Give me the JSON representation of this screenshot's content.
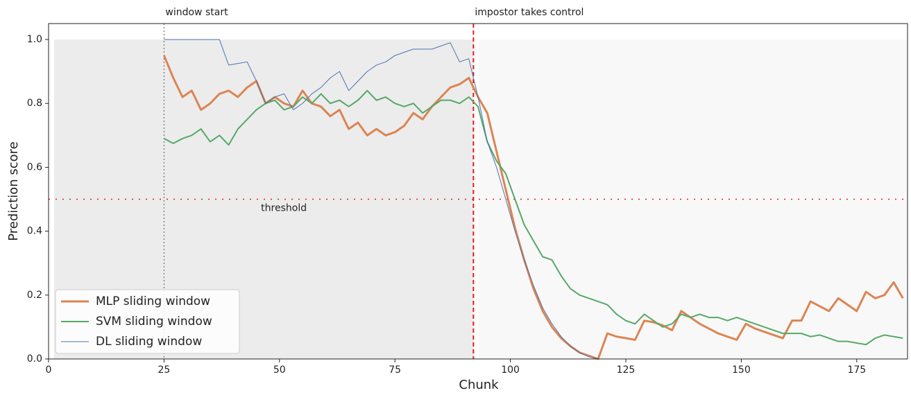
{
  "chart_data": {
    "type": "line",
    "xlabel": "Chunk",
    "ylabel": "Prediction score",
    "xlim": [
      0,
      186
    ],
    "xticks": [
      0,
      25,
      50,
      75,
      100,
      125,
      150,
      175
    ],
    "ylim": [
      0,
      1.05
    ],
    "yticks": [
      {
        "value": 0,
        "label": "0.0"
      },
      0.2,
      0.4,
      0.6,
      0.8,
      {
        "value": 1,
        "label": "1.0"
      }
    ],
    "legend": "lower left",
    "annotations": [
      {
        "text": "window start",
        "x": 25,
        "color": "#555555"
      },
      {
        "text": "impostor takes control",
        "x": 92,
        "color": "#e41a1c"
      }
    ],
    "threshold": {
      "text": "threshold",
      "y": 0.5,
      "color": "#e41a1c"
    },
    "x": [
      25,
      27,
      29,
      31,
      33,
      35,
      37,
      39,
      41,
      43,
      45,
      47,
      49,
      51,
      53,
      55,
      57,
      59,
      61,
      63,
      65,
      67,
      69,
      71,
      73,
      75,
      77,
      79,
      81,
      83,
      85,
      87,
      89,
      91,
      93,
      95,
      97,
      99,
      101,
      103,
      105,
      107,
      109,
      111,
      113,
      115,
      117,
      119,
      121,
      123,
      125,
      127,
      129,
      131,
      133,
      135,
      137,
      139,
      141,
      143,
      145,
      147,
      149,
      151,
      153,
      155,
      157,
      159,
      161,
      163,
      165,
      167,
      169,
      171,
      173,
      175,
      177,
      179,
      181,
      183,
      185
    ],
    "series": [
      {
        "name": "MLP sliding window",
        "color": "#dd8452",
        "width": 3,
        "values": [
          0.95,
          0.88,
          0.82,
          0.84,
          0.78,
          0.8,
          0.83,
          0.84,
          0.82,
          0.85,
          0.87,
          0.8,
          0.82,
          0.8,
          0.79,
          0.84,
          0.8,
          0.79,
          0.76,
          0.78,
          0.72,
          0.74,
          0.7,
          0.72,
          0.7,
          0.71,
          0.73,
          0.77,
          0.75,
          0.79,
          0.82,
          0.85,
          0.86,
          0.88,
          0.82,
          0.77,
          0.65,
          0.53,
          0.41,
          0.31,
          0.22,
          0.15,
          0.1,
          0.065,
          0.04,
          0.02,
          0.01,
          0,
          0.08,
          0.07,
          0.065,
          0.06,
          0.12,
          0.115,
          0.105,
          0.09,
          0.15,
          0.13,
          0.11,
          0.095,
          0.08,
          0.07,
          0.06,
          0.11,
          0.095,
          0.085,
          0.075,
          0.065,
          0.12,
          0.12,
          0.18,
          0.165,
          0.15,
          0.19,
          0.17,
          0.15,
          0.21,
          0.19,
          0.2,
          0.24,
          0.19
        ]
      },
      {
        "name": "SVM sliding window",
        "color": "#55a868",
        "width": 2,
        "values": [
          0.69,
          0.675,
          0.69,
          0.7,
          0.72,
          0.68,
          0.7,
          0.67,
          0.72,
          0.75,
          0.78,
          0.8,
          0.81,
          0.78,
          0.79,
          0.82,
          0.8,
          0.83,
          0.8,
          0.81,
          0.79,
          0.81,
          0.84,
          0.81,
          0.82,
          0.8,
          0.79,
          0.8,
          0.77,
          0.79,
          0.81,
          0.81,
          0.8,
          0.82,
          0.79,
          0.68,
          0.62,
          0.58,
          0.5,
          0.42,
          0.37,
          0.32,
          0.31,
          0.26,
          0.22,
          0.2,
          0.19,
          0.18,
          0.17,
          0.14,
          0.12,
          0.11,
          0.14,
          0.12,
          0.1,
          0.11,
          0.14,
          0.13,
          0.14,
          0.13,
          0.13,
          0.12,
          0.13,
          0.12,
          0.11,
          0.1,
          0.09,
          0.08,
          0.08,
          0.08,
          0.07,
          0.075,
          0.065,
          0.055,
          0.055,
          0.05,
          0.045,
          0.065,
          0.075,
          0.07,
          0.065
        ]
      },
      {
        "name": "DL sliding window",
        "color": "#4c72b0",
        "width": 1,
        "values": [
          1,
          1,
          1,
          1,
          1,
          1,
          1,
          0.92,
          0.925,
          0.93,
          0.87,
          0.8,
          0.82,
          0.83,
          0.78,
          0.8,
          0.83,
          0.85,
          0.88,
          0.9,
          0.84,
          0.87,
          0.9,
          0.92,
          0.93,
          0.95,
          0.96,
          0.97,
          0.97,
          0.97,
          0.98,
          0.99,
          0.93,
          0.94,
          0.82,
          0.68,
          0.6,
          0.5,
          0.4,
          0.31,
          0.23,
          0.16,
          0.11,
          0.07,
          0.04,
          0.02,
          0.007,
          0,
          0,
          0,
          0,
          0,
          0,
          0,
          0,
          0,
          0,
          0,
          0,
          0,
          0,
          0,
          0,
          0,
          0,
          0,
          0,
          0,
          0,
          0,
          0,
          0,
          0,
          0,
          0,
          0,
          0,
          0,
          0,
          0,
          0
        ]
      }
    ]
  }
}
